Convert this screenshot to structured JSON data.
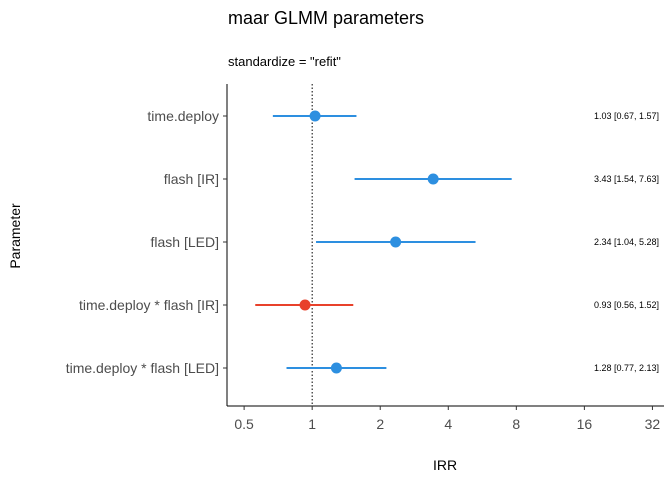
{
  "chart_data": {
    "type": "forest",
    "title": "maar GLMM parameters",
    "subtitle": "standardize  = \"refit\"",
    "xlabel": "IRR",
    "ylabel": "Parameter",
    "x_scale": "log2",
    "xlim": [
      0.42,
      36
    ],
    "xticks": [
      0.5,
      1,
      2,
      4,
      8,
      16,
      32
    ],
    "xtick_labels": [
      "0.5",
      "1",
      "2",
      "4",
      "8",
      "16",
      "32"
    ],
    "reference_line": 1,
    "colors": {
      "positive": "#2d8fe0",
      "negative": "#e8412b",
      "reference": "#000000"
    },
    "parameters": [
      {
        "label": "time.deploy",
        "estimate": 1.03,
        "ci_low": 0.67,
        "ci_high": 1.57,
        "annotation": "1.03 [0.67, 1.57]"
      },
      {
        "label": "flash [IR]",
        "estimate": 3.43,
        "ci_low": 1.54,
        "ci_high": 7.63,
        "annotation": "3.43 [1.54, 7.63]"
      },
      {
        "label": "flash [LED]",
        "estimate": 2.34,
        "ci_low": 1.04,
        "ci_high": 5.28,
        "annotation": "2.34 [1.04, 5.28]"
      },
      {
        "label": "time.deploy * flash [IR]",
        "estimate": 0.93,
        "ci_low": 0.56,
        "ci_high": 1.52,
        "annotation": "0.93 [0.56, 1.52]"
      },
      {
        "label": "time.deploy * flash [LED]",
        "estimate": 1.28,
        "ci_low": 0.77,
        "ci_high": 2.13,
        "annotation": "1.28 [0.77, 2.13]"
      }
    ]
  }
}
